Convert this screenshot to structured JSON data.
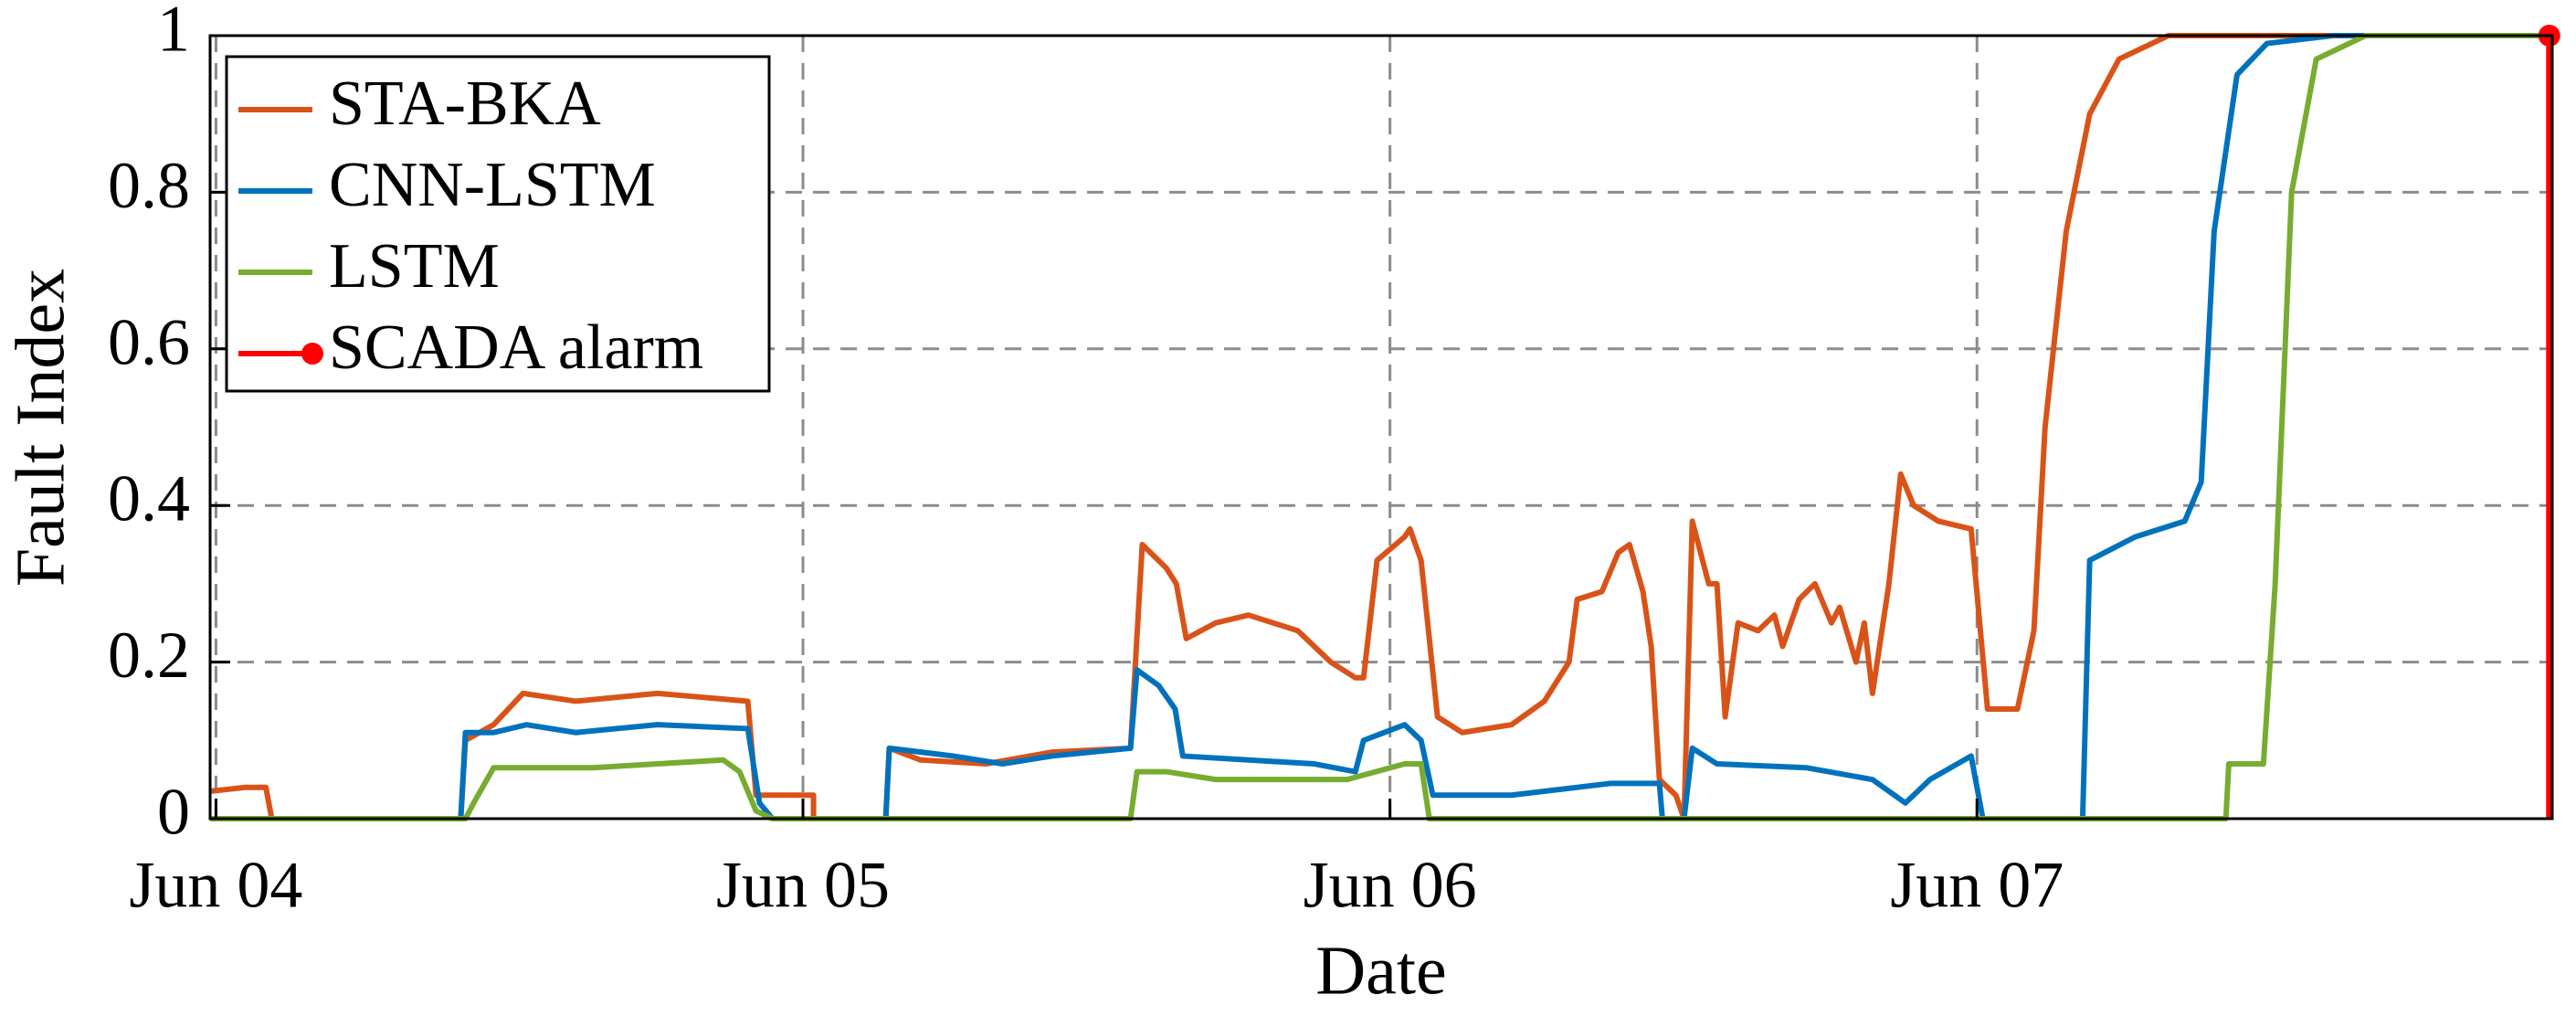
{
  "chart_data": {
    "type": "line",
    "xlabel": "Date",
    "ylabel": "Fault Index",
    "xlim": [
      3.99,
      7.98
    ],
    "ylim": [
      0,
      1
    ],
    "xticks": [
      {
        "value": 4,
        "label": "Jun 04"
      },
      {
        "value": 5,
        "label": "Jun 05"
      },
      {
        "value": 6,
        "label": "Jun 06"
      },
      {
        "value": 7,
        "label": "Jun 07"
      }
    ],
    "yticks": [
      0,
      0.2,
      0.4,
      0.6,
      0.8,
      1
    ],
    "grid": true,
    "legend": "upper left",
    "series": [
      {
        "name": "STA-BKA",
        "color": "#d95319",
        "x": [
          3.99,
          4.05,
          4.085,
          4.095,
          4.417,
          4.425,
          4.473,
          4.523,
          4.613,
          4.752,
          4.906,
          4.92,
          5.018,
          5.018,
          5.141,
          5.147,
          5.2,
          5.312,
          5.424,
          5.558,
          5.578,
          5.619,
          5.636,
          5.653,
          5.703,
          5.759,
          5.843,
          5.899,
          5.941,
          5.955,
          5.978,
          6.025,
          6.034,
          6.053,
          6.081,
          6.123,
          6.207,
          6.263,
          6.305,
          6.319,
          6.361,
          6.389,
          6.408,
          6.431,
          6.445,
          6.459,
          6.487,
          6.501,
          6.515,
          6.543,
          6.557,
          6.571,
          6.593,
          6.627,
          6.655,
          6.669,
          6.697,
          6.724,
          6.752,
          6.766,
          6.794,
          6.808,
          6.822,
          6.85,
          6.87,
          6.892,
          6.934,
          6.99,
          7.018,
          7.069,
          7.097,
          7.116,
          7.152,
          7.192,
          7.242,
          7.326,
          7.975
        ],
        "values": [
          0.035,
          0.04,
          0.04,
          0,
          0,
          0.1,
          0.12,
          0.16,
          0.15,
          0.16,
          0.15,
          0.03,
          0.03,
          0,
          0,
          0.09,
          0.075,
          0.07,
          0.085,
          0.09,
          0.35,
          0.32,
          0.3,
          0.23,
          0.25,
          0.26,
          0.24,
          0.2,
          0.18,
          0.18,
          0.33,
          0.36,
          0.37,
          0.33,
          0.13,
          0.11,
          0.12,
          0.15,
          0.2,
          0.28,
          0.29,
          0.34,
          0.35,
          0.29,
          0.22,
          0.05,
          0.03,
          0,
          0.38,
          0.3,
          0.3,
          0.13,
          0.25,
          0.24,
          0.26,
          0.22,
          0.28,
          0.3,
          0.25,
          0.27,
          0.2,
          0.25,
          0.16,
          0.3,
          0.44,
          0.4,
          0.38,
          0.37,
          0.14,
          0.14,
          0.24,
          0.5,
          0.75,
          0.9,
          0.97,
          1,
          1
        ]
      },
      {
        "name": "CNN-LSTM",
        "color": "#0072bd",
        "x": [
          3.99,
          4.417,
          4.425,
          4.473,
          4.529,
          4.613,
          4.752,
          4.906,
          4.926,
          4.948,
          5.141,
          5.147,
          5.256,
          5.34,
          5.424,
          5.558,
          5.569,
          5.606,
          5.634,
          5.647,
          5.759,
          5.871,
          5.941,
          5.955,
          6.025,
          6.053,
          6.073,
          6.207,
          6.375,
          6.459,
          6.464,
          6.501,
          6.515,
          6.557,
          6.71,
          6.822,
          6.878,
          6.92,
          6.99,
          7.01,
          7.18,
          7.192,
          7.27,
          7.354,
          7.382,
          7.404,
          7.443,
          7.494,
          7.606,
          7.975
        ],
        "values": [
          0,
          0,
          0.11,
          0.11,
          0.12,
          0.11,
          0.12,
          0.115,
          0.02,
          0,
          0,
          0.09,
          0.08,
          0.07,
          0.08,
          0.09,
          0.19,
          0.17,
          0.14,
          0.08,
          0.075,
          0.07,
          0.06,
          0.1,
          0.12,
          0.1,
          0.03,
          0.03,
          0.045,
          0.045,
          0,
          0,
          0.09,
          0.07,
          0.065,
          0.05,
          0.02,
          0.05,
          0.08,
          0,
          0,
          0.33,
          0.36,
          0.38,
          0.43,
          0.75,
          0.95,
          0.99,
          1,
          1
        ]
      },
      {
        "name": "LSTM",
        "color": "#77ac30",
        "x": [
          3.99,
          4.425,
          4.439,
          4.473,
          4.641,
          4.752,
          4.864,
          4.892,
          4.92,
          4.948,
          5.558,
          5.569,
          5.619,
          5.703,
          5.871,
          5.927,
          6.025,
          6.053,
          6.067,
          7.424,
          7.429,
          7.488,
          7.508,
          7.536,
          7.578,
          7.662,
          7.975
        ],
        "values": [
          0,
          0,
          0.02,
          0.065,
          0.065,
          0.07,
          0.075,
          0.06,
          0.01,
          0,
          0,
          0.06,
          0.06,
          0.05,
          0.05,
          0.05,
          0.07,
          0.07,
          0,
          0,
          0.07,
          0.07,
          0.3,
          0.8,
          0.97,
          1,
          1
        ]
      },
      {
        "name": "SCADA alarm",
        "color": "#ff0000",
        "style": "stem",
        "x": [
          7.975
        ],
        "values": [
          1
        ]
      }
    ]
  }
}
